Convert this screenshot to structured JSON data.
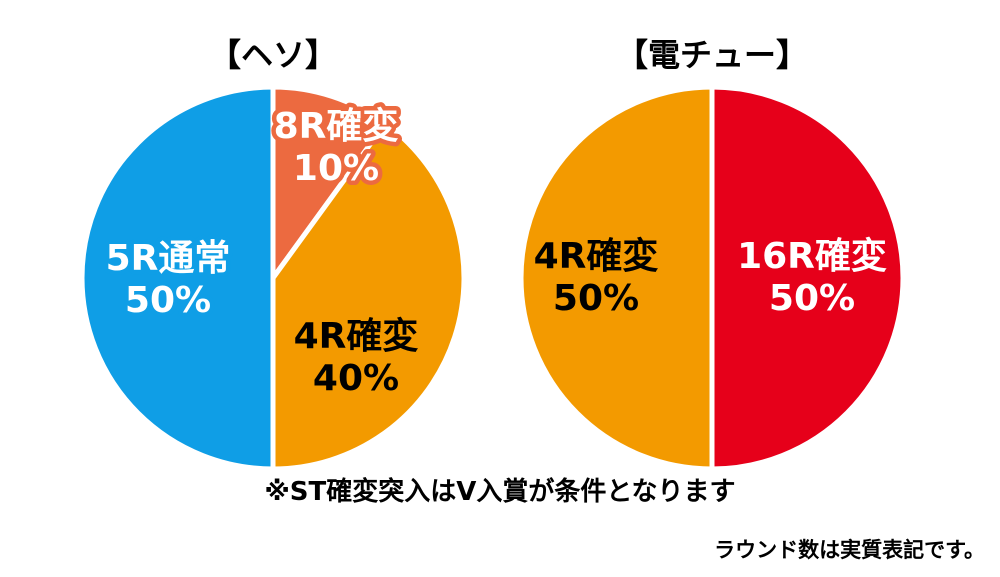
{
  "colors": {
    "blue": "#0f9ee6",
    "orange": "#f39a00",
    "coral": "#ec6a40",
    "red": "#e6001a",
    "text_black": "#000000",
    "text_white": "#ffffff"
  },
  "chart_data": [
    {
      "type": "pie",
      "title": "【ヘソ】",
      "slices": [
        {
          "name": "8R確変",
          "value": 10,
          "value_label": "10%",
          "color": "#ec6a40",
          "label_color": "white"
        },
        {
          "name": "4R確変",
          "value": 40,
          "value_label": "40%",
          "color": "#f39a00",
          "label_color": "black"
        },
        {
          "name": "5R通常",
          "value": 50,
          "value_label": "50%",
          "color": "#0f9ee6",
          "label_color": "white"
        }
      ]
    },
    {
      "type": "pie",
      "title": "【電チュー】",
      "slices": [
        {
          "name": "16R確変",
          "value": 50,
          "value_label": "50%",
          "color": "#e6001a",
          "label_color": "white"
        },
        {
          "name": "4R確変",
          "value": 50,
          "value_label": "50%",
          "color": "#f39a00",
          "label_color": "black"
        }
      ]
    }
  ],
  "notes": {
    "condition": "※ST確変突入はV入賞が条件となります",
    "round_notation": "ラウンド数は実質表記です。"
  }
}
